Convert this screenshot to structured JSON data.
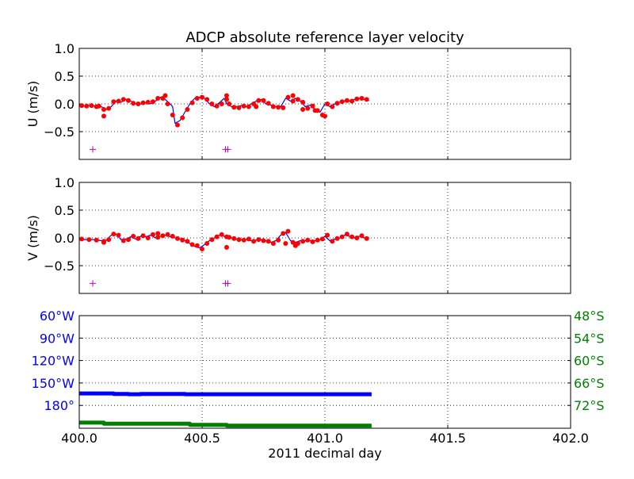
{
  "chart_data": [
    {
      "type": "line",
      "title": "ADCP absolute reference layer velocity",
      "ylabel": "U (m/s)",
      "xlabel": "",
      "xlim": [
        400.0,
        402.0
      ],
      "ylim": [
        -1.0,
        1.0
      ],
      "xticks": [
        400.0,
        400.5,
        401.0,
        401.5,
        402.0
      ],
      "yticks": [
        1.0,
        0.5,
        0.0,
        -0.5
      ],
      "ytick_labels": [
        "1.0",
        "0.5",
        "0.0",
        "−0.5"
      ],
      "grid": true,
      "series": [
        {
          "style": "line",
          "color": "#0000ff",
          "x": [
            400.0,
            400.02,
            400.05,
            400.07,
            400.09,
            400.11,
            400.13,
            400.15,
            400.17,
            400.19,
            400.21,
            400.23,
            400.25,
            400.27,
            400.29,
            400.31,
            400.33,
            400.35,
            400.37,
            400.38,
            400.39,
            400.41,
            400.43,
            400.45,
            400.47,
            400.49,
            400.51,
            400.53,
            400.55,
            400.57,
            400.59,
            400.6,
            400.62,
            400.64,
            400.66,
            400.68,
            400.7,
            400.72,
            400.74,
            400.76,
            400.78,
            400.8,
            400.82,
            400.84,
            400.86,
            400.88,
            400.9,
            400.92,
            400.94,
            400.96,
            400.98,
            401.0,
            401.02,
            401.04,
            401.06,
            401.08,
            401.1,
            401.12,
            401.14,
            401.16,
            401.18
          ],
          "y": [
            -0.04,
            -0.04,
            -0.03,
            -0.04,
            -0.05,
            -0.1,
            -0.05,
            0.05,
            0.03,
            0.08,
            0.05,
            0.0,
            0.0,
            0.02,
            0.0,
            0.05,
            0.12,
            0.08,
            0.0,
            -0.05,
            -0.35,
            -0.3,
            -0.15,
            0.0,
            0.1,
            0.12,
            0.1,
            0.0,
            -0.05,
            0.02,
            0.1,
            0.0,
            -0.05,
            -0.05,
            -0.03,
            -0.05,
            0.0,
            0.05,
            0.08,
            0.0,
            -0.02,
            -0.05,
            -0.05,
            0.1,
            0.05,
            0.1,
            0.05,
            -0.05,
            -0.02,
            -0.1,
            -0.15,
            0.0,
            -0.05,
            0.0,
            0.03,
            0.05,
            0.05,
            0.08,
            0.1,
            0.08,
            0.06
          ]
        },
        {
          "style": "dots",
          "color": "#ff0000",
          "x": [
            400.01,
            400.03,
            400.05,
            400.07,
            400.08,
            400.1,
            400.12,
            400.14,
            400.16,
            400.18,
            400.2,
            400.22,
            400.24,
            400.26,
            400.28,
            400.3,
            400.32,
            400.34,
            400.36,
            400.38,
            400.4,
            400.42,
            400.44,
            400.46,
            400.48,
            400.5,
            400.52,
            400.54,
            400.56,
            400.58,
            400.6,
            400.61,
            400.63,
            400.65,
            400.67,
            400.69,
            400.71,
            400.73,
            400.75,
            400.77,
            400.79,
            400.81,
            400.83,
            400.85,
            400.87,
            400.89,
            400.91,
            400.93,
            400.95,
            400.97,
            400.99,
            401.01,
            401.03,
            401.05,
            401.07,
            401.09,
            401.11,
            401.13,
            401.15,
            401.17,
            400.35,
            400.6,
            400.72,
            400.87,
            400.91,
            400.96,
            401.0,
            400.1
          ],
          "y": [
            -0.03,
            -0.04,
            -0.03,
            -0.05,
            -0.04,
            -0.1,
            -0.08,
            0.04,
            0.05,
            0.08,
            0.06,
            0.01,
            0.0,
            0.02,
            0.03,
            0.04,
            0.1,
            0.1,
            0.0,
            -0.2,
            -0.38,
            -0.25,
            -0.1,
            0.02,
            0.1,
            0.12,
            0.08,
            0.0,
            -0.04,
            0.0,
            0.08,
            0.0,
            -0.06,
            -0.07,
            -0.04,
            -0.05,
            0.0,
            0.06,
            0.06,
            0.01,
            -0.05,
            -0.06,
            -0.07,
            0.12,
            0.05,
            0.08,
            0.03,
            -0.08,
            -0.04,
            -0.12,
            -0.2,
            0.0,
            -0.05,
            0.01,
            0.04,
            0.06,
            0.05,
            0.09,
            0.1,
            0.08,
            0.15,
            0.15,
            -0.05,
            0.15,
            -0.1,
            -0.12,
            -0.22,
            -0.22
          ]
        },
        {
          "style": "plus",
          "color": "#bf00bf",
          "x": [
            400.055,
            400.595,
            400.605
          ],
          "y": [
            -0.82,
            -0.82,
            -0.82
          ]
        }
      ]
    },
    {
      "type": "line",
      "title": "",
      "ylabel": "V (m/s)",
      "xlabel": "",
      "xlim": [
        400.0,
        402.0
      ],
      "ylim": [
        -1.0,
        1.0
      ],
      "xticks": [
        400.0,
        400.5,
        401.0,
        401.5,
        402.0
      ],
      "yticks": [
        1.0,
        0.5,
        0.0,
        -0.5
      ],
      "ytick_labels": [
        "1.0",
        "0.5",
        "0.0",
        "−0.5"
      ],
      "grid": true,
      "series": [
        {
          "style": "line",
          "color": "#0000ff",
          "x": [
            400.0,
            400.03,
            400.06,
            400.09,
            400.11,
            400.13,
            400.15,
            400.17,
            400.19,
            400.21,
            400.23,
            400.25,
            400.27,
            400.29,
            400.31,
            400.33,
            400.35,
            400.37,
            400.39,
            400.41,
            400.43,
            400.45,
            400.47,
            400.49,
            400.51,
            400.53,
            400.55,
            400.57,
            400.59,
            400.6,
            400.62,
            400.64,
            400.66,
            400.68,
            400.7,
            400.72,
            400.74,
            400.76,
            400.78,
            400.8,
            400.82,
            400.84,
            400.86,
            400.88,
            400.9,
            400.92,
            400.94,
            400.96,
            400.98,
            401.0,
            401.02,
            401.04,
            401.06,
            401.08,
            401.1,
            401.12,
            401.14,
            401.16,
            401.18
          ],
          "y": [
            -0.02,
            -0.03,
            -0.03,
            -0.05,
            -0.04,
            0.05,
            0.07,
            -0.03,
            -0.02,
            0.02,
            -0.02,
            0.03,
            0.02,
            0.05,
            0.0,
            0.03,
            0.05,
            0.02,
            0.0,
            -0.02,
            -0.05,
            -0.1,
            -0.15,
            -0.18,
            -0.12,
            -0.05,
            0.0,
            0.05,
            0.03,
            0.02,
            0.0,
            -0.02,
            -0.03,
            -0.03,
            -0.05,
            -0.04,
            -0.03,
            -0.05,
            -0.08,
            -0.05,
            0.05,
            0.1,
            -0.05,
            -0.08,
            -0.05,
            -0.05,
            -0.05,
            -0.05,
            -0.03,
            0.03,
            -0.05,
            -0.02,
            0.0,
            0.05,
            0.03,
            0.0,
            0.03,
            0.0,
            0.0
          ]
        },
        {
          "style": "dots",
          "color": "#ff0000",
          "x": [
            400.01,
            400.04,
            400.07,
            400.1,
            400.12,
            400.14,
            400.16,
            400.18,
            400.2,
            400.22,
            400.24,
            400.26,
            400.28,
            400.3,
            400.32,
            400.34,
            400.36,
            400.38,
            400.4,
            400.42,
            400.44,
            400.46,
            400.48,
            400.5,
            400.52,
            400.54,
            400.56,
            400.58,
            400.6,
            400.61,
            400.63,
            400.65,
            400.67,
            400.69,
            400.71,
            400.73,
            400.75,
            400.77,
            400.79,
            400.81,
            400.83,
            400.85,
            400.87,
            400.89,
            400.91,
            400.93,
            400.95,
            400.97,
            400.99,
            401.01,
            401.03,
            401.05,
            401.07,
            401.09,
            401.11,
            401.13,
            401.15,
            401.17,
            400.1,
            400.6,
            400.84,
            400.88,
            400.32
          ],
          "y": [
            -0.02,
            -0.03,
            -0.04,
            -0.06,
            -0.03,
            0.07,
            0.05,
            -0.05,
            -0.03,
            0.03,
            -0.01,
            0.04,
            0.0,
            0.06,
            0.01,
            0.04,
            0.06,
            0.03,
            -0.01,
            -0.04,
            -0.06,
            -0.12,
            -0.14,
            -0.2,
            -0.1,
            -0.03,
            0.02,
            0.06,
            0.02,
            0.01,
            -0.01,
            -0.03,
            -0.04,
            -0.02,
            -0.06,
            -0.03,
            -0.05,
            -0.06,
            -0.1,
            -0.04,
            0.08,
            0.12,
            -0.08,
            -0.1,
            -0.06,
            -0.04,
            -0.07,
            -0.04,
            -0.02,
            0.05,
            -0.06,
            -0.01,
            0.02,
            0.07,
            0.02,
            0.0,
            0.04,
            -0.01,
            -0.08,
            -0.17,
            -0.1,
            -0.14,
            0.08
          ]
        },
        {
          "style": "plus",
          "color": "#bf00bf",
          "x": [
            400.055,
            400.595,
            400.605
          ],
          "y": [
            -0.82,
            -0.82,
            -0.82
          ]
        }
      ]
    },
    {
      "type": "line",
      "title": "",
      "xlabel": "2011 decimal day",
      "xlim": [
        400.0,
        402.0
      ],
      "xticks": [
        400.0,
        400.5,
        401.0,
        401.5,
        402.0
      ],
      "xtick_labels": [
        "400.0",
        "400.5",
        "401.0",
        "401.5",
        "402.0"
      ],
      "grid": true,
      "left_axis": {
        "color": "#0000ff",
        "ylim": [
          160,
          65
        ],
        "yticks": [
          60,
          90,
          120,
          150,
          180
        ],
        "ytick_labels": [
          "60°W",
          "90°W",
          "120°W",
          "150°W",
          "180°"
        ]
      },
      "right_axis": {
        "color": "#008000",
        "ytick_labels": [
          "48°S",
          "54°S",
          "60°S",
          "66°S",
          "72°S"
        ]
      },
      "series": [
        {
          "axis": "left",
          "style": "thick",
          "color": "#0000ff",
          "x": [
            400.0,
            400.14,
            400.14,
            400.2,
            400.2,
            400.25,
            400.25,
            400.43,
            400.43,
            401.19
          ],
          "y": [
            -164.0,
            -164.0,
            -164.6,
            -164.6,
            -165.1,
            -165.1,
            -164.6,
            -164.6,
            -165.1,
            -165.1
          ]
        },
        {
          "axis": "right",
          "style": "thick",
          "color": "#008000",
          "x": [
            400.0,
            400.1,
            400.1,
            400.45,
            400.45,
            400.6,
            400.6,
            401.19
          ],
          "y": [
            -76.6,
            -76.6,
            -76.9,
            -76.9,
            -77.2,
            -77.2,
            -77.4,
            -77.4
          ]
        }
      ]
    }
  ]
}
